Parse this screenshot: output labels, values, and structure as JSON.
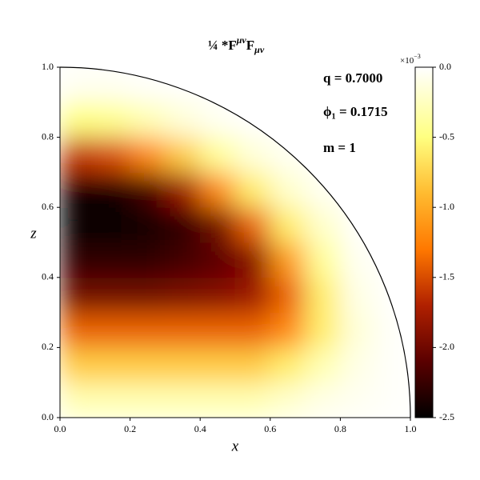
{
  "chart_data": {
    "type": "heatmap",
    "title": {
      "part1": "¼ *F",
      "sup": "μν",
      "part2": "F",
      "sub": "μν"
    },
    "xlabel": "x",
    "ylabel": "z",
    "xlim": [
      0,
      1
    ],
    "ylim": [
      0,
      1
    ],
    "xticks": [
      {
        "value": 0,
        "label": "0.0"
      },
      0.2,
      0.4,
      0.6,
      0.8,
      {
        "value": 1,
        "label": "1.0"
      }
    ],
    "yticks": [
      {
        "value": 0,
        "label": "0.0"
      },
      0.2,
      0.4,
      0.6,
      0.8,
      {
        "value": 1,
        "label": "1.0"
      }
    ],
    "x": [
      0.05,
      0.15,
      0.25,
      0.35,
      0.45,
      0.55,
      0.65,
      0.75,
      0.85,
      0.95
    ],
    "z": [
      0.05,
      0.15,
      0.25,
      0.35,
      0.45,
      0.55,
      0.65,
      0.75,
      0.85,
      0.95
    ],
    "values": [
      [
        -0.3,
        -0.3,
        -0.3,
        -0.3,
        -0.3,
        -0.3,
        -0.2,
        -0.1,
        -0.05,
        -0.02
      ],
      [
        -0.8,
        -0.8,
        -0.8,
        -0.8,
        -0.8,
        -0.8,
        -0.6,
        -0.3,
        -0.1,
        -0.02
      ],
      [
        -1.4,
        -1.4,
        -1.4,
        -1.4,
        -1.4,
        -1.4,
        -1.2,
        -0.6,
        -0.15,
        -0.02
      ],
      [
        -2.0,
        -2.0,
        -2.0,
        -1.95,
        -1.9,
        -1.8,
        -1.4,
        -0.6,
        -0.1,
        null
      ],
      [
        -2.3,
        -2.3,
        -2.3,
        -2.2,
        -2.1,
        -1.9,
        -1.1,
        -0.4,
        -0.05,
        null
      ],
      [
        -2.5,
        -2.5,
        -2.4,
        -2.3,
        -2.0,
        -1.4,
        -0.6,
        -0.2,
        null,
        null
      ],
      [
        -2.4,
        -2.4,
        -2.2,
        -1.8,
        -1.2,
        -0.6,
        -0.2,
        -0.05,
        null,
        null
      ],
      [
        -1.6,
        -1.5,
        -1.2,
        -0.8,
        -0.4,
        -0.15,
        -0.05,
        null,
        null,
        null
      ],
      [
        -0.5,
        -0.45,
        -0.3,
        -0.15,
        -0.05,
        null,
        null,
        null,
        null,
        null
      ],
      [
        -0.05,
        -0.05,
        -0.02,
        null,
        null,
        null,
        null,
        null,
        null,
        null
      ]
    ],
    "clim": [
      -2.5,
      0
    ],
    "cticks": [
      {
        "value": 0,
        "label": "0.0"
      },
      -0.5,
      {
        "value": -1,
        "label": "-1.0"
      },
      -1.5,
      {
        "value": -2,
        "label": "-2.0"
      },
      -2.5
    ],
    "cbar_multiplier": {
      "base": "×10",
      "exp": "−3"
    },
    "colorscale": [
      [
        -2.5,
        "#000000"
      ],
      [
        -2.1,
        "#5a0000"
      ],
      [
        -1.7,
        "#b02000"
      ],
      [
        -1.3,
        "#ff7800"
      ],
      [
        -0.9,
        "#ffbb30"
      ],
      [
        -0.5,
        "#ffff80"
      ],
      [
        0,
        "#ffffff"
      ]
    ],
    "annotations": [
      "q  = 0.7000",
      "ϕ₁ = 0.1715",
      "m = 1"
    ]
  }
}
